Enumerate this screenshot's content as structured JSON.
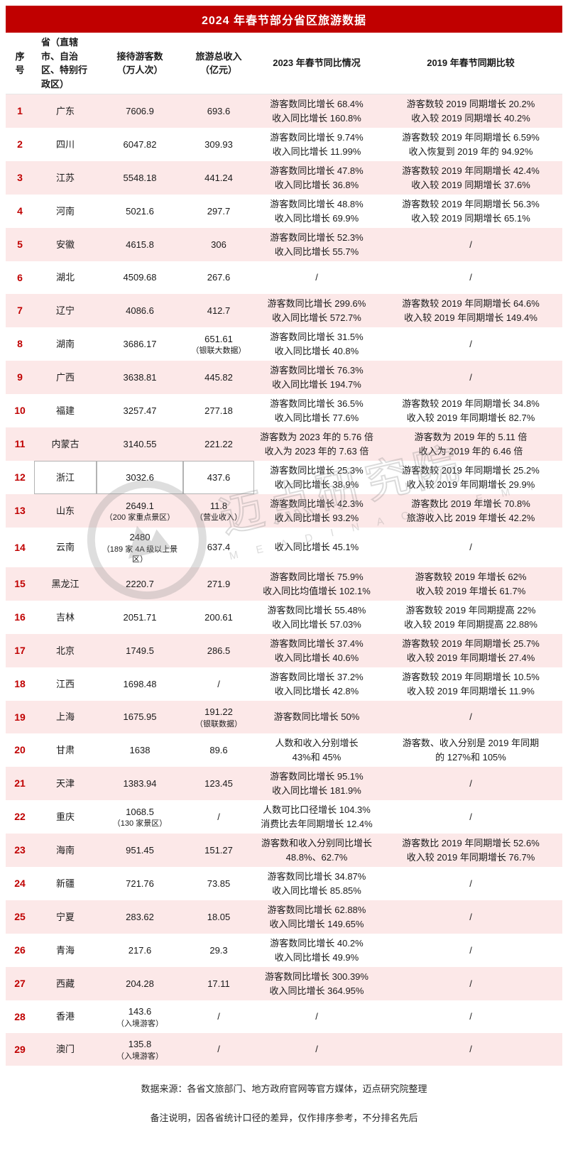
{
  "title": "2024 年春节部分省区旅游数据",
  "colors": {
    "accent_red": "#c00000",
    "row_pink": "#fce8e8",
    "title_text": "#ffffff"
  },
  "watermark": {
    "cn": "迈点研究院",
    "en": "M E A D I N  A C A D E M Y"
  },
  "footer": {
    "source": "数据来源：各省文旅部门、地方政府官网等官方媒体，迈点研究院整理",
    "note": "备注说明，因各省统计口径的差异，仅作排序参考，不分排名先后"
  },
  "chart_data": {
    "type": "table",
    "columns": [
      "序号",
      "省（直辖市、自治区、特别行政区）",
      "接待游客数（万人次）",
      "旅游总收入（亿元）",
      "2023 年春节同比情况",
      "2019 年春节同期比较"
    ],
    "rows": [
      {
        "no": "1",
        "province": "广东",
        "visitors": "7606.9",
        "visitors_note": "",
        "revenue": "693.6",
        "revenue_note": "",
        "yoy_2023": [
          "游客数同比增长 68.4%",
          "收入同比增长 160.8%"
        ],
        "vs_2019": [
          "游客数较 2019 同期增长 20.2%",
          "收入较 2019 同期增长 40.2%"
        ]
      },
      {
        "no": "2",
        "province": "四川",
        "visitors": "6047.82",
        "visitors_note": "",
        "revenue": "309.93",
        "revenue_note": "",
        "yoy_2023": [
          "游客数同比增长 9.74%",
          "收入同比增长 11.99%"
        ],
        "vs_2019": [
          "游客数较 2019 年同期增长 6.59%",
          "收入恢复到 2019 年的 94.92%"
        ]
      },
      {
        "no": "3",
        "province": "江苏",
        "visitors": "5548.18",
        "visitors_note": "",
        "revenue": "441.24",
        "revenue_note": "",
        "yoy_2023": [
          "游客数同比增长 47.8%",
          "收入同比增长 36.8%"
        ],
        "vs_2019": [
          "游客数较 2019 年同期增长 42.4%",
          "收入较 2019 同期增长 37.6%"
        ]
      },
      {
        "no": "4",
        "province": "河南",
        "visitors": "5021.6",
        "visitors_note": "",
        "revenue": "297.7",
        "revenue_note": "",
        "yoy_2023": [
          "游客数同比增长 48.8%",
          "收入同比增长 69.9%"
        ],
        "vs_2019": [
          "游客数较 2019 年同期增长 56.3%",
          "收入较 2019 同期增长 65.1%"
        ]
      },
      {
        "no": "5",
        "province": "安徽",
        "visitors": "4615.8",
        "visitors_note": "",
        "revenue": "306",
        "revenue_note": "",
        "yoy_2023": [
          "游客数同比增长 52.3%",
          "收入同比增长 55.7%"
        ],
        "vs_2019": [
          "/"
        ]
      },
      {
        "no": "6",
        "province": "湖北",
        "visitors": "4509.68",
        "visitors_note": "",
        "revenue": "267.6",
        "revenue_note": "",
        "yoy_2023": [
          "/"
        ],
        "vs_2019": [
          "/"
        ]
      },
      {
        "no": "7",
        "province": "辽宁",
        "visitors": "4086.6",
        "visitors_note": "",
        "revenue": "412.7",
        "revenue_note": "",
        "yoy_2023": [
          "游客数同比增长 299.6%",
          "收入同比增长 572.7%"
        ],
        "vs_2019": [
          "游客数较 2019 年同期增长 64.6%",
          "收入较 2019 年同期增长 149.4%"
        ]
      },
      {
        "no": "8",
        "province": "湖南",
        "visitors": "3686.17",
        "visitors_note": "",
        "revenue": "651.61",
        "revenue_note": "（银联大数据）",
        "yoy_2023": [
          "游客数同比增长 31.5%",
          "收入同比增长 40.8%"
        ],
        "vs_2019": [
          "/"
        ]
      },
      {
        "no": "9",
        "province": "广西",
        "visitors": "3638.81",
        "visitors_note": "",
        "revenue": "445.82",
        "revenue_note": "",
        "yoy_2023": [
          "游客数同比增长 76.3%",
          "收入同比增长 194.7%"
        ],
        "vs_2019": [
          "/"
        ]
      },
      {
        "no": "10",
        "province": "福建",
        "visitors": "3257.47",
        "visitors_note": "",
        "revenue": "277.18",
        "revenue_note": "",
        "yoy_2023": [
          "游客数同比增长 36.5%",
          "收入同比增长 77.6%"
        ],
        "vs_2019": [
          "游客数较 2019 年同期增长 34.8%",
          "收入较 2019 年同期增长 82.7%"
        ]
      },
      {
        "no": "11",
        "province": "内蒙古",
        "visitors": "3140.55",
        "visitors_note": "",
        "revenue": "221.22",
        "revenue_note": "",
        "yoy_2023": [
          "游客数为 2023 年的 5.76 倍",
          "收入为 2023 年的 7.63 倍"
        ],
        "vs_2019": [
          "游客数为 2019 年的 5.11 倍",
          "收入为 2019 年的 6.46 倍"
        ]
      },
      {
        "no": "12",
        "province": "浙江",
        "visitors": "3032.6",
        "visitors_note": "",
        "revenue": "437.6",
        "revenue_note": "",
        "yoy_2023": [
          "游客数同比增长 25.3%",
          "收入同比增长 38.9%"
        ],
        "vs_2019": [
          "游客数较 2019 年同期增长 25.2%",
          "收入较 2019 年同期增长 29.9%"
        ]
      },
      {
        "no": "13",
        "province": "山东",
        "visitors": "2649.1",
        "visitors_note": "（200 家重点景区）",
        "revenue": "11.8",
        "revenue_note": "（营业收入）",
        "yoy_2023": [
          "游客数同比增长 42.3%",
          "收入同比增长 93.2%"
        ],
        "vs_2019": [
          "游客数比 2019 年增长 70.8%",
          "旅游收入比 2019 年增长 42.2%"
        ]
      },
      {
        "no": "14",
        "province": "云南",
        "visitors": "2480",
        "visitors_note": "（189 家 4A 级以上景区）",
        "revenue": "637.4",
        "revenue_note": "",
        "yoy_2023": [
          "收入同比增长 45.1%"
        ],
        "vs_2019": [
          "/"
        ]
      },
      {
        "no": "15",
        "province": "黑龙江",
        "visitors": "2220.7",
        "visitors_note": "",
        "revenue": "271.9",
        "revenue_note": "",
        "yoy_2023": [
          "游客数同比增长 75.9%",
          "收入同比均值增长 102.1%"
        ],
        "vs_2019": [
          "游客数较 2019 年增长 62%",
          "收入较 2019 年增长 61.7%"
        ]
      },
      {
        "no": "16",
        "province": "吉林",
        "visitors": "2051.71",
        "visitors_note": "",
        "revenue": "200.61",
        "revenue_note": "",
        "yoy_2023": [
          "游客数同比增长 55.48%",
          "收入同比增长 57.03%"
        ],
        "vs_2019": [
          "游客数较 2019 年同期提高 22%",
          "收入较 2019 年同期提高 22.88%"
        ]
      },
      {
        "no": "17",
        "province": "北京",
        "visitors": "1749.5",
        "visitors_note": "",
        "revenue": "286.5",
        "revenue_note": "",
        "yoy_2023": [
          "游客数同比增长 37.4%",
          "收入同比增长 40.6%"
        ],
        "vs_2019": [
          "游客数较 2019 年同期增长 25.7%",
          "收入较 2019 年同期增长 27.4%"
        ]
      },
      {
        "no": "18",
        "province": "江西",
        "visitors": "1698.48",
        "visitors_note": "",
        "revenue": "/",
        "revenue_note": "",
        "yoy_2023": [
          "游客数同比增长 37.2%",
          "收入同比增长 42.8%"
        ],
        "vs_2019": [
          "游客数较 2019 年同期增长 10.5%",
          "收入较 2019 年同期增长 11.9%"
        ]
      },
      {
        "no": "19",
        "province": "上海",
        "visitors": "1675.95",
        "visitors_note": "",
        "revenue": "191.22",
        "revenue_note": "（银联数据）",
        "yoy_2023": [
          "游客数同比增长 50%"
        ],
        "vs_2019": [
          "/"
        ]
      },
      {
        "no": "20",
        "province": "甘肃",
        "visitors": "1638",
        "visitors_note": "",
        "revenue": "89.6",
        "revenue_note": "",
        "yoy_2023": [
          "人数和收入分别增长",
          "43%和 45%"
        ],
        "vs_2019": [
          "游客数、收入分别是 2019 年同期",
          "的 127%和 105%"
        ]
      },
      {
        "no": "21",
        "province": "天津",
        "visitors": "1383.94",
        "visitors_note": "",
        "revenue": "123.45",
        "revenue_note": "",
        "yoy_2023": [
          "游客数同比增长 95.1%",
          "收入同比增长 181.9%"
        ],
        "vs_2019": [
          "/"
        ]
      },
      {
        "no": "22",
        "province": "重庆",
        "visitors": "1068.5",
        "visitors_note": "（130 家景区）",
        "revenue": "/",
        "revenue_note": "",
        "yoy_2023": [
          "人数可比口径增长 104.3%",
          "消费比去年同期增长 12.4%"
        ],
        "vs_2019": [
          "/"
        ]
      },
      {
        "no": "23",
        "province": "海南",
        "visitors": "951.45",
        "visitors_note": "",
        "revenue": "151.27",
        "revenue_note": "",
        "yoy_2023": [
          "游客数和收入分别同比增长",
          "48.8%、62.7%"
        ],
        "vs_2019": [
          "游客数比 2019 年同期增长 52.6%",
          "收入较 2019 年同期增长 76.7%"
        ]
      },
      {
        "no": "24",
        "province": "新疆",
        "visitors": "721.76",
        "visitors_note": "",
        "revenue": "73.85",
        "revenue_note": "",
        "yoy_2023": [
          "游客数同比增长 34.87%",
          "收入同比增长 85.85%"
        ],
        "vs_2019": [
          "/"
        ]
      },
      {
        "no": "25",
        "province": "宁夏",
        "visitors": "283.62",
        "visitors_note": "",
        "revenue": "18.05",
        "revenue_note": "",
        "yoy_2023": [
          "游客数同比增长 62.88%",
          "收入同比增长 149.65%"
        ],
        "vs_2019": [
          "/"
        ]
      },
      {
        "no": "26",
        "province": "青海",
        "visitors": "217.6",
        "visitors_note": "",
        "revenue": "29.3",
        "revenue_note": "",
        "yoy_2023": [
          "游客数同比增长 40.2%",
          "收入同比增长 49.9%"
        ],
        "vs_2019": [
          "/"
        ]
      },
      {
        "no": "27",
        "province": "西藏",
        "visitors": "204.28",
        "visitors_note": "",
        "revenue": "17.11",
        "revenue_note": "",
        "yoy_2023": [
          "游客数同比增长 300.39%",
          "收入同比增长 364.95%"
        ],
        "vs_2019": [
          "/"
        ]
      },
      {
        "no": "28",
        "province": "香港",
        "visitors": "143.6",
        "visitors_note": "（入境游客）",
        "revenue": "/",
        "revenue_note": "",
        "yoy_2023": [
          "/"
        ],
        "vs_2019": [
          "/"
        ]
      },
      {
        "no": "29",
        "province": "澳门",
        "visitors": "135.8",
        "visitors_note": "（入境游客）",
        "revenue": "/",
        "revenue_note": "",
        "yoy_2023": [
          "/"
        ],
        "vs_2019": [
          "/"
        ]
      }
    ]
  }
}
